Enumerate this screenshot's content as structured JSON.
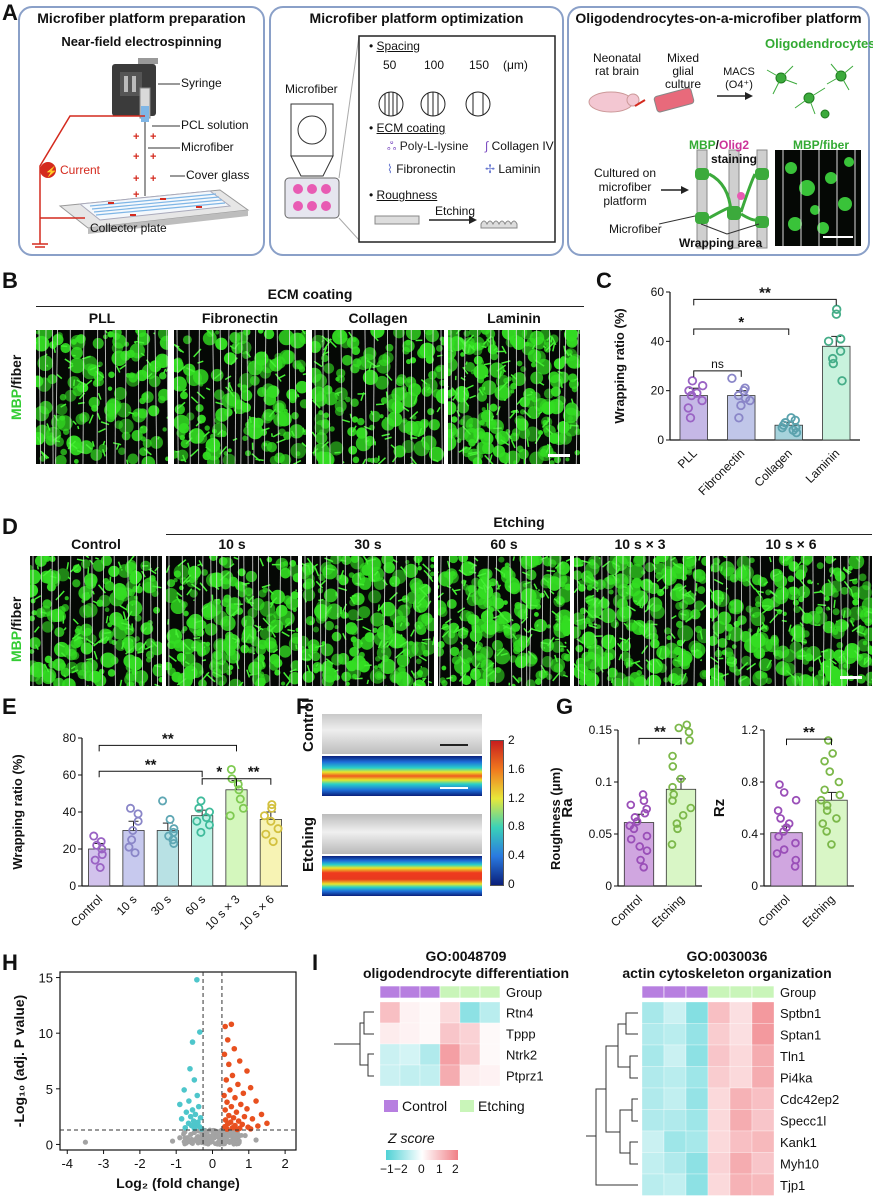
{
  "panels": {
    "A": "A",
    "B": "B",
    "C": "C",
    "D": "D",
    "E": "E",
    "F": "F",
    "G": "G",
    "H": "H",
    "I": "I"
  },
  "panelA": {
    "box1": {
      "title": "Microfiber platform preparation",
      "subtitle": "Near-field electrospinning",
      "syringe": "Syringe",
      "pcl": "PCL solution",
      "microfiber": "Microfiber",
      "current": "Current",
      "cover": "Cover glass",
      "collector": "Collector plate"
    },
    "box2": {
      "title": "Microfiber platform optimization",
      "microfiber": "Microfiber",
      "spacing": "Spacing",
      "spacing_values": [
        "50",
        "100",
        "150"
      ],
      "spacing_unit": "(μm)",
      "ecm": "ECM coating",
      "coatings": [
        "Poly-L-lysine",
        "Collagen IV",
        "Fibronectin",
        "Laminin"
      ],
      "roughness": "Roughness",
      "etching": "Etching"
    },
    "box3": {
      "title": "Oligodendrocytes-on-a-microfiber platform",
      "neonatal": "Neonatal rat brain",
      "mixed": "Mixed glial culture",
      "macs": "MACS (O4⁺)",
      "oligo": "Oligodendrocytes",
      "mbp": "MBP",
      "slash": "/",
      "olig2": "Olig2",
      "staining": "staining",
      "mbpfiber": "MBP/fiber",
      "cultured": "Cultured on microfiber platform",
      "microfiber": "Microfiber",
      "wrapping": "Wrapping area"
    },
    "colors": {
      "box_border": "#8aa0c8",
      "mbp_green": "#33aa33",
      "olig2_pink": "#cc3399",
      "current_red": "#d42a1e"
    }
  },
  "panelB": {
    "header": "ECM coating",
    "ylabel_mbp": "MBP",
    "ylabel_rest": "/fiber",
    "conditions": [
      "PLL",
      "Fibronectin",
      "Collagen",
      "Laminin"
    ]
  },
  "panelD": {
    "header": "Etching",
    "ylabel_mbp": "MBP",
    "ylabel_rest": "/fiber",
    "conditions": [
      "Control",
      "10 s",
      "30 s",
      "60 s",
      "10 s × 3",
      "10 s × 6"
    ]
  },
  "panelF": {
    "rows": [
      "Control",
      "Etching"
    ],
    "colorbar_label": "Roughness (μm)",
    "colorbar_ticks": [
      "2",
      "1.6",
      "1.2",
      "0.8",
      "0.4",
      "0"
    ]
  },
  "panelI": {
    "left": {
      "go": "GO:0048709",
      "title": "oligodendrocyte differentiation",
      "group": "Group",
      "genes": [
        "Rtn4",
        "Tppp",
        "Ntrk2",
        "Ptprz1"
      ]
    },
    "right": {
      "go": "GO:0030036",
      "title": "actin cytoskeleton organization",
      "group": "Group",
      "genes": [
        "Sptbn1",
        "Sptan1",
        "Tln1",
        "Pi4ka",
        "Cdc42ep2",
        "Specc1l",
        "Kank1",
        "Myh10",
        "Tjp1"
      ]
    },
    "legend": {
      "control": "Control",
      "etching": "Etching",
      "zscore": "Z score",
      "ticks": [
        "−1",
        "−2",
        "0",
        "1",
        "2"
      ]
    },
    "colors": {
      "control": "#b77fe0",
      "etching": "#c9f5b9",
      "low": "#4fd1d5",
      "high": "#f07f86"
    }
  },
  "chart_data": [
    {
      "id": "C",
      "type": "bar",
      "categories": [
        "PLL",
        "Fibronectin",
        "Collagen",
        "Laminin"
      ],
      "values": [
        18,
        18,
        6,
        38
      ],
      "errors": [
        3,
        2,
        1.2,
        4
      ],
      "points": [
        [
          9,
          13,
          16,
          18,
          19,
          20,
          22,
          24
        ],
        [
          9,
          14,
          16,
          17,
          18,
          20,
          21,
          25
        ],
        [
          3,
          4,
          5,
          5,
          6,
          7,
          8,
          9
        ],
        [
          24,
          31,
          33,
          36,
          40,
          41,
          51,
          53
        ]
      ],
      "ylabel": "Wrapping ratio (%)",
      "ylim": [
        0,
        60
      ],
      "yticks": [
        0,
        20,
        40,
        60
      ],
      "colors": [
        "#c5b8e6",
        "#c0c6e9",
        "#a6d3dc",
        "#c8f2dd"
      ],
      "point_colors": [
        "#9a63c4",
        "#8a86c8",
        "#5aa2ad",
        "#45ad88"
      ],
      "sig": [
        {
          "from": 0,
          "to": 1,
          "label": "ns"
        },
        {
          "from": 0,
          "to": 2,
          "label": "*"
        },
        {
          "from": 0,
          "to": 3,
          "label": "**"
        }
      ]
    },
    {
      "id": "E",
      "type": "bar",
      "categories": [
        "Control",
        "10 s",
        "30 s",
        "60 s",
        "10 s × 3",
        "10 s × 6"
      ],
      "values": [
        20,
        30,
        30,
        38,
        52,
        36
      ],
      "errors": [
        3,
        5,
        4,
        3,
        5,
        4
      ],
      "points": [
        [
          10,
          14,
          17,
          20,
          22,
          24,
          27
        ],
        [
          18,
          21,
          25,
          30,
          35,
          39,
          42
        ],
        [
          23,
          25,
          27,
          29,
          31,
          36,
          46
        ],
        [
          29,
          33,
          35,
          37,
          40,
          42,
          46
        ],
        [
          38,
          42,
          47,
          52,
          55,
          58,
          63
        ],
        [
          24,
          28,
          31,
          35,
          38,
          42,
          44
        ]
      ],
      "ylabel": "Wrapping ratio (%)",
      "ylim": [
        0,
        80
      ],
      "yticks": [
        0,
        20,
        40,
        60,
        80
      ],
      "colors": [
        "#d2c2ec",
        "#c7c9ee",
        "#b8e1e4",
        "#bff3e6",
        "#d4f7bd",
        "#f7f3b4"
      ],
      "point_colors": [
        "#9a63c4",
        "#8a86c8",
        "#5fa7b4",
        "#3fbb9b",
        "#7fca51",
        "#d3c13f"
      ],
      "sig": [
        {
          "from": 0,
          "to": 4,
          "label": "**"
        },
        {
          "from": 0,
          "to": 3,
          "label": "**"
        },
        {
          "from": 3,
          "to": 4,
          "label": "*"
        },
        {
          "from": 4,
          "to": 5,
          "label": "**"
        }
      ]
    },
    {
      "id": "G-Ra",
      "type": "bar",
      "categories": [
        "Control",
        "Etching"
      ],
      "values": [
        0.061,
        0.093
      ],
      "errors": [
        0.008,
        0.01
      ],
      "points": [
        [
          0.018,
          0.025,
          0.034,
          0.038,
          0.045,
          0.048,
          0.055,
          0.058,
          0.062,
          0.066,
          0.07,
          0.074,
          0.078,
          0.082,
          0.088
        ],
        [
          0.04,
          0.055,
          0.06,
          0.068,
          0.075,
          0.082,
          0.088,
          0.095,
          0.103,
          0.115,
          0.125,
          0.14,
          0.148,
          0.152,
          0.155
        ]
      ],
      "ylabel": "Ra",
      "ylim": [
        0,
        0.15
      ],
      "yticks": [
        0,
        0.05,
        0.1,
        0.15
      ],
      "ytick_labels": [
        "0",
        "0.05",
        "0.1",
        "0.15"
      ],
      "colors": [
        "#d0a6e0",
        "#d9f6c6"
      ],
      "point_colors": [
        "#9a4fb8",
        "#7cb84a"
      ],
      "sig": [
        {
          "from": 0,
          "to": 1,
          "label": "**"
        }
      ]
    },
    {
      "id": "G-Rz",
      "type": "bar",
      "categories": [
        "Control",
        "Etching"
      ],
      "values": [
        0.41,
        0.66
      ],
      "errors": [
        0.05,
        0.06
      ],
      "points": [
        [
          0.15,
          0.2,
          0.25,
          0.28,
          0.33,
          0.38,
          0.42,
          0.45,
          0.48,
          0.52,
          0.58,
          0.66,
          0.72,
          0.78
        ],
        [
          0.32,
          0.42,
          0.48,
          0.52,
          0.58,
          0.62,
          0.66,
          0.7,
          0.74,
          0.8,
          0.88,
          0.96,
          1.02,
          1.12
        ]
      ],
      "ylabel": "Rz",
      "ylim": [
        0,
        1.2
      ],
      "yticks": [
        0,
        0.4,
        0.8,
        1.2
      ],
      "ytick_labels": [
        "0",
        "0.4",
        "0.8",
        "1.2"
      ],
      "colors": [
        "#d0a6e0",
        "#d9f6c6"
      ],
      "point_colors": [
        "#9a4fb8",
        "#7cb84a"
      ],
      "sig": [
        {
          "from": 0,
          "to": 1,
          "label": "**"
        }
      ]
    },
    {
      "id": "H",
      "type": "scatter",
      "xlabel": "Log₂ (fold change)",
      "ylabel": "-Log₁₀ (adj. P value)",
      "xlim": [
        -4.2,
        2.3
      ],
      "ylim": [
        -0.5,
        15.5
      ],
      "xticks": [
        -4,
        -3,
        -2,
        -1,
        0,
        1,
        2
      ],
      "yticks": [
        0,
        5,
        10,
        15
      ],
      "vlines": [
        -0.26,
        0.26
      ],
      "hline": 1.3,
      "colors": {
        "down": "#4ec6cb",
        "up": "#e8501f",
        "ns": "#a3a3a3"
      },
      "down_points": [
        [
          -0.43,
          14.8
        ],
        [
          -0.35,
          10.1
        ],
        [
          -0.55,
          9.2
        ],
        [
          -0.62,
          6.8
        ],
        [
          -0.5,
          5.8
        ],
        [
          -0.78,
          4.9
        ],
        [
          -0.42,
          4.4
        ],
        [
          -0.65,
          3.9
        ],
        [
          -0.9,
          3.6
        ],
        [
          -0.38,
          3.4
        ],
        [
          -0.55,
          3.1
        ],
        [
          -0.72,
          2.9
        ],
        [
          -0.47,
          2.7
        ],
        [
          -0.6,
          2.5
        ],
        [
          -0.33,
          2.4
        ],
        [
          -0.85,
          2.3
        ],
        [
          -0.52,
          2.1
        ],
        [
          -0.4,
          2
        ],
        [
          -0.66,
          1.9
        ],
        [
          -0.45,
          1.8
        ],
        [
          -0.58,
          1.7
        ],
        [
          -0.36,
          1.6
        ],
        [
          -0.75,
          1.5
        ],
        [
          -0.5,
          1.45
        ],
        [
          -0.3,
          1.4
        ]
      ],
      "up_points": [
        [
          0.35,
          10.6
        ],
        [
          0.52,
          10.8
        ],
        [
          0.42,
          9.4
        ],
        [
          0.6,
          8.6
        ],
        [
          0.33,
          8.1
        ],
        [
          0.75,
          7.5
        ],
        [
          0.45,
          7.2
        ],
        [
          0.95,
          6.6
        ],
        [
          0.55,
          6.2
        ],
        [
          0.38,
          5.8
        ],
        [
          0.7,
          5.4
        ],
        [
          1.05,
          5.1
        ],
        [
          0.48,
          4.9
        ],
        [
          0.85,
          4.6
        ],
        [
          0.32,
          4.4
        ],
        [
          0.62,
          4.2
        ],
        [
          1.2,
          3.9
        ],
        [
          0.4,
          3.8
        ],
        [
          0.78,
          3.6
        ],
        [
          0.52,
          3.4
        ],
        [
          0.95,
          3.2
        ],
        [
          0.35,
          3.1
        ],
        [
          0.66,
          2.9
        ],
        [
          1.35,
          2.7
        ],
        [
          0.45,
          2.6
        ],
        [
          0.88,
          2.5
        ],
        [
          0.58,
          2.4
        ],
        [
          1.1,
          2.3
        ],
        [
          0.36,
          2.2
        ],
        [
          0.72,
          2.1
        ],
        [
          0.5,
          2
        ],
        [
          1.5,
          1.9
        ],
        [
          0.42,
          1.85
        ],
        [
          0.82,
          1.8
        ],
        [
          0.62,
          1.7
        ],
        [
          1.25,
          1.65
        ],
        [
          0.34,
          1.6
        ],
        [
          0.98,
          1.55
        ],
        [
          0.55,
          1.5
        ],
        [
          0.75,
          1.45
        ],
        [
          1.05,
          1.4
        ],
        [
          0.4,
          1.38
        ],
        [
          0.68,
          1.35
        ]
      ],
      "ns_points": [
        [
          -3.5,
          0.2
        ],
        [
          -0.2,
          0.5
        ],
        [
          -0.15,
          1.1
        ],
        [
          0.1,
          0.8
        ],
        [
          0.18,
          0.3
        ],
        [
          -0.05,
          0.2
        ],
        [
          0.22,
          1.2
        ],
        [
          -0.22,
          0.9
        ],
        [
          0.05,
          0.6
        ],
        [
          -0.1,
          0.4
        ],
        [
          0.3,
          0.4
        ],
        [
          -0.3,
          0.3
        ],
        [
          0.12,
          1.0
        ],
        [
          -0.18,
          0.1
        ],
        [
          0.25,
          0.7
        ],
        [
          -0.08,
          0.75
        ],
        [
          0.15,
          0.15
        ],
        [
          -0.25,
          0.6
        ],
        [
          0.4,
          0.9
        ],
        [
          -0.4,
          0.7
        ],
        [
          0.5,
          0.3
        ],
        [
          -0.5,
          0.4
        ],
        [
          0.6,
          1.1
        ],
        [
          -0.6,
          0.9
        ],
        [
          0.7,
          0.5
        ],
        [
          -0.7,
          0.2
        ],
        [
          0.9,
          0.8
        ],
        [
          -0.9,
          0.6
        ],
        [
          1.2,
          0.4
        ],
        [
          -1.1,
          0.3
        ],
        [
          0.35,
          0.2
        ],
        [
          -0.35,
          1.2
        ],
        [
          0.02,
          1.25
        ],
        [
          -0.12,
          0.05
        ],
        [
          0.2,
          0.02
        ]
      ]
    },
    {
      "id": "I-left",
      "type": "heatmap",
      "rows": [
        "Rtn4",
        "Tppp",
        "Ntrk2",
        "Ptprz1"
      ],
      "group": [
        "Control",
        "Control",
        "Control",
        "Etching",
        "Etching",
        "Etching"
      ],
      "values": [
        [
          1.0,
          0.2,
          0.1,
          0.6,
          -1.3,
          -0.8
        ],
        [
          0.3,
          0.2,
          0.1,
          0.9,
          0.7,
          0.1
        ],
        [
          -0.6,
          -0.5,
          -0.9,
          1.5,
          0.8,
          0.1
        ],
        [
          -0.6,
          -0.7,
          -0.7,
          1.3,
          0.3,
          0.2
        ]
      ]
    },
    {
      "id": "I-right",
      "type": "heatmap",
      "rows": [
        "Sptbn1",
        "Sptan1",
        "Tln1",
        "Pi4ka",
        "Cdc42ep2",
        "Specc1l",
        "Kank1",
        "Myh10",
        "Tjp1"
      ],
      "group": [
        "Control",
        "Control",
        "Control",
        "Etching",
        "Etching",
        "Etching"
      ],
      "values": [
        [
          -1.0,
          -0.6,
          -1.4,
          1.0,
          0.5,
          1.6
        ],
        [
          -0.9,
          -0.8,
          -1.2,
          0.8,
          0.5,
          1.6
        ],
        [
          -1.0,
          -0.6,
          -1.3,
          0.9,
          0.6,
          1.3
        ],
        [
          -0.9,
          -0.8,
          -1.1,
          0.8,
          0.6,
          1.3
        ],
        [
          -0.9,
          -0.7,
          -1.2,
          0.6,
          1.2,
          1.0
        ],
        [
          -0.9,
          -0.9,
          -1.1,
          0.6,
          1.3,
          0.9
        ],
        [
          -0.6,
          -1.1,
          -1.0,
          0.6,
          1.0,
          1.1
        ],
        [
          -0.7,
          -0.9,
          -1.3,
          0.7,
          1.3,
          0.9
        ],
        [
          -0.8,
          -0.7,
          -1.3,
          0.6,
          1.2,
          1.1
        ]
      ]
    }
  ]
}
